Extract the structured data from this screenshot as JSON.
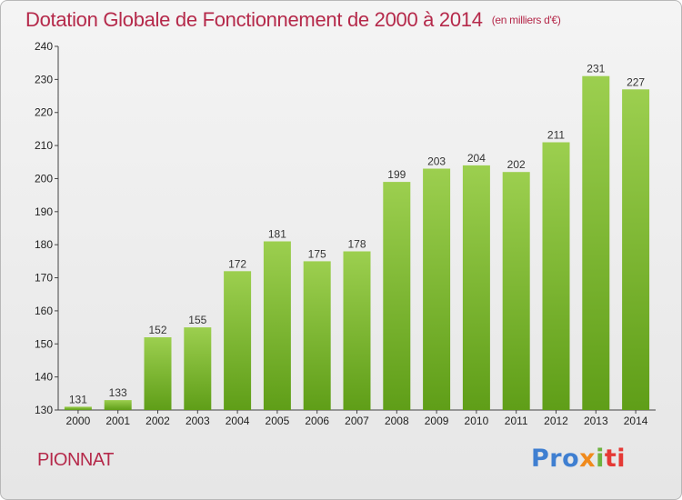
{
  "header": {
    "title": "Dotation Globale de Fonctionnement de 2000 à 2014",
    "unit": "(en milliers d'€)"
  },
  "footer": {
    "commune": "PIONNAT",
    "logo": [
      "Pro",
      "x",
      "i",
      "ti"
    ]
  },
  "colors": {
    "title": "#b5294a",
    "bar_light": "#9ccf4f",
    "bar_dark": "#5f9e18"
  },
  "chart_data": {
    "type": "bar",
    "title": "Dotation Globale de Fonctionnement de 2000 à 2014",
    "subtitle": "(en milliers d'€)",
    "xlabel": "",
    "ylabel": "",
    "categories": [
      "2000",
      "2001",
      "2002",
      "2003",
      "2004",
      "2005",
      "2006",
      "2007",
      "2008",
      "2009",
      "2010",
      "2011",
      "2012",
      "2013",
      "2014"
    ],
    "values": [
      131,
      133,
      152,
      155,
      172,
      181,
      175,
      178,
      199,
      203,
      204,
      202,
      211,
      231,
      227
    ],
    "ylim": [
      130,
      240
    ],
    "yticks": [
      130,
      140,
      150,
      160,
      170,
      180,
      190,
      200,
      210,
      220,
      230,
      240
    ],
    "grid": false,
    "legend": "none"
  }
}
